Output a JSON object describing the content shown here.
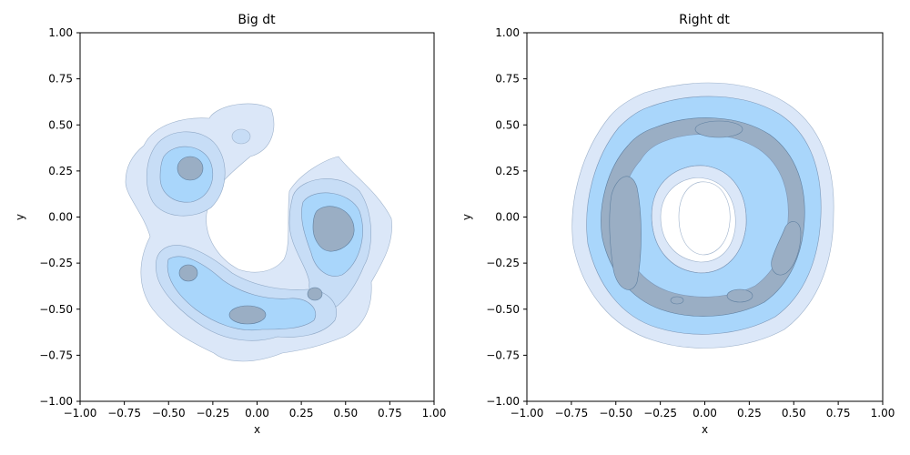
{
  "chart_data": [
    {
      "type": "kde-contour",
      "title": "Big dt",
      "xlabel": "x",
      "ylabel": "y",
      "xlim": [
        -1.0,
        1.0
      ],
      "ylim": [
        -1.0,
        1.0
      ],
      "xticks": [
        -1.0,
        -0.75,
        -0.5,
        -0.25,
        0.0,
        0.25,
        0.5,
        0.75,
        1.0
      ],
      "yticks": [
        -1.0,
        -0.75,
        -0.5,
        -0.25,
        0.0,
        0.25,
        0.5,
        0.75,
        1.0
      ],
      "xtick_labels": [
        "−1.00",
        "−0.75",
        "−0.50",
        "−0.25",
        "0.00",
        "0.25",
        "0.50",
        "0.75",
        "1.00"
      ],
      "ytick_labels": [
        "−1.00",
        "−0.75",
        "−0.50",
        "−0.25",
        "0.00",
        "0.25",
        "0.50",
        "0.75",
        "1.00"
      ],
      "grid": false,
      "density_peaks": [
        {
          "x": -0.37,
          "y": 0.27
        },
        {
          "x": 0.43,
          "y": -0.06
        },
        {
          "x": -0.05,
          "y": -0.53
        },
        {
          "x": -0.38,
          "y": -0.3
        },
        {
          "x": 0.32,
          "y": -0.41
        },
        {
          "x": -0.09,
          "y": 0.43
        }
      ],
      "contour_levels": 10
    },
    {
      "type": "kde-contour",
      "title": "Right dt",
      "xlabel": "x",
      "ylabel": "y",
      "xlim": [
        -1.0,
        1.0
      ],
      "ylim": [
        -1.0,
        1.0
      ],
      "xticks": [
        -1.0,
        -0.75,
        -0.5,
        -0.25,
        0.0,
        0.25,
        0.5,
        0.75,
        1.0
      ],
      "yticks": [
        -1.0,
        -0.75,
        -0.5,
        -0.25,
        0.0,
        0.25,
        0.5,
        0.75,
        1.0
      ],
      "xtick_labels": [
        "−1.00",
        "−0.75",
        "−0.50",
        "−0.25",
        "0.00",
        "0.25",
        "0.50",
        "0.75",
        "1.00"
      ],
      "ytick_labels": [
        "−1.00",
        "−0.75",
        "−0.50",
        "−0.25",
        "0.00",
        "0.25",
        "0.50",
        "0.75",
        "1.00"
      ],
      "grid": false,
      "ring_center": {
        "x": 0.0,
        "y": 0.0
      },
      "ring_radius": 0.5,
      "density_peaks": [
        {
          "x": -0.45,
          "y": -0.05
        },
        {
          "x": 0.47,
          "y": -0.18
        },
        {
          "x": 0.05,
          "y": 0.48
        },
        {
          "x": 0.2,
          "y": -0.43
        },
        {
          "x": -0.15,
          "y": -0.45
        }
      ],
      "contour_levels": 10
    }
  ],
  "colors": {
    "outer_fill": "#dbe7f8",
    "mid_fill": "#a9d6fb",
    "inner_fill": "#9aaec4",
    "line": "#5e7fa0",
    "axis": "#000000"
  }
}
